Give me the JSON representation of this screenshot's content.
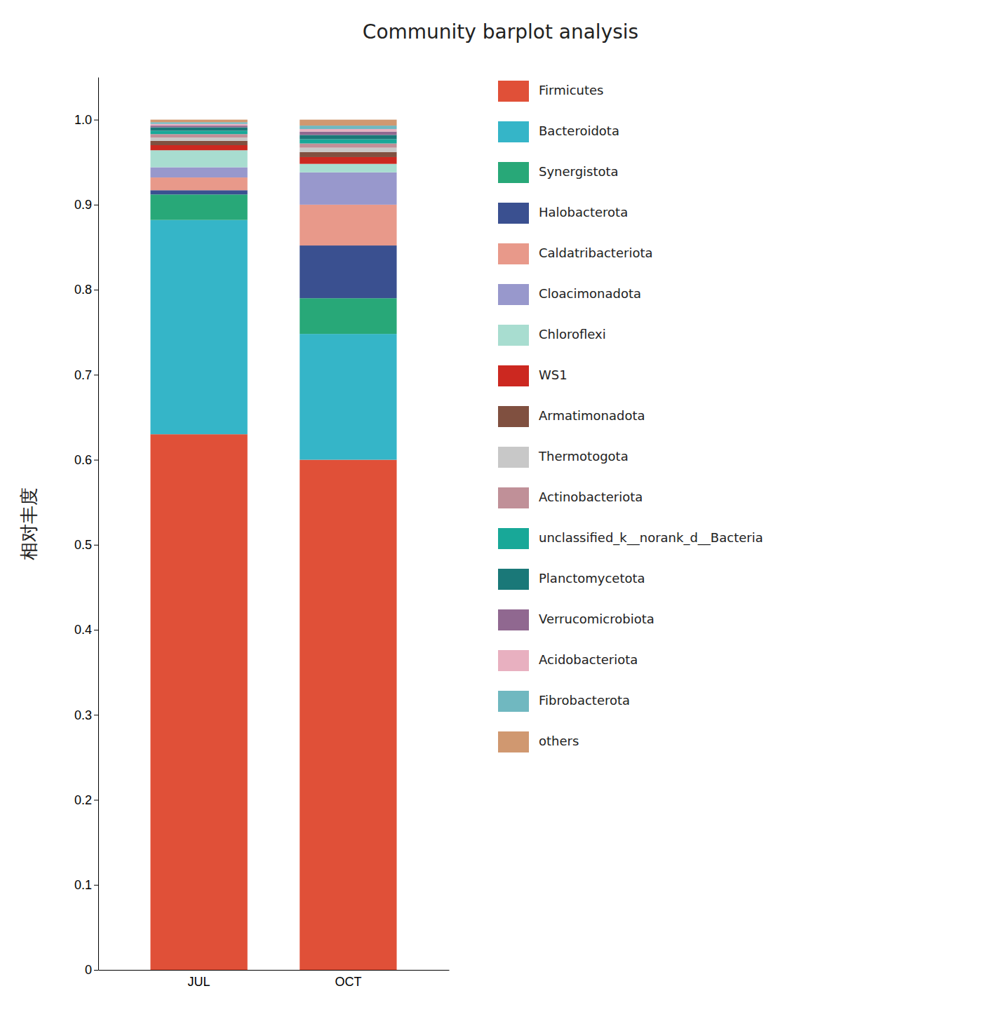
{
  "chart_data": {
    "type": "bar",
    "title": "Community barplot analysis",
    "ylabel": "相对丰度",
    "categories": [
      "JUL",
      "OCT"
    ],
    "stacked": true,
    "grid": false,
    "legend": "right",
    "ylim": [
      0,
      1.05
    ],
    "yticks": [
      0,
      0.1,
      0.2,
      0.3,
      0.4,
      0.5,
      0.6,
      0.7,
      0.8,
      0.9,
      {
        "value": 1,
        "label": "1.0"
      }
    ],
    "series": [
      {
        "name": "Firmicutes",
        "color": "#E05038",
        "values": [
          0.63,
          0.6
        ]
      },
      {
        "name": "Bacteroidota",
        "color": "#35B5C8",
        "values": [
          0.252,
          0.148
        ]
      },
      {
        "name": "Synergistota",
        "color": "#28A878",
        "values": [
          0.03,
          0.042
        ]
      },
      {
        "name": "Halobacterota",
        "color": "#3A5090",
        "values": [
          0.005,
          0.062
        ]
      },
      {
        "name": "Caldatribacteriota",
        "color": "#E8998A",
        "values": [
          0.015,
          0.048
        ]
      },
      {
        "name": "Cloacimonadota",
        "color": "#9898CC",
        "values": [
          0.012,
          0.038
        ]
      },
      {
        "name": "Chloroflexi",
        "color": "#A8DDD0",
        "values": [
          0.02,
          0.01
        ]
      },
      {
        "name": "WS1",
        "color": "#CC2820",
        "values": [
          0.006,
          0.008
        ]
      },
      {
        "name": "Armatimonadota",
        "color": "#805040",
        "values": [
          0.005,
          0.006
        ]
      },
      {
        "name": "Thermotogota",
        "color": "#C8C8C8",
        "values": [
          0.004,
          0.005
        ]
      },
      {
        "name": "Actinobacteriota",
        "color": "#C09098",
        "values": [
          0.004,
          0.005
        ]
      },
      {
        "name": "unclassified_k__norank_d__Bacteria",
        "color": "#18A898",
        "values": [
          0.004,
          0.005
        ]
      },
      {
        "name": "Planctomycetota",
        "color": "#1A7878",
        "values": [
          0.004,
          0.005
        ]
      },
      {
        "name": "Verrucomicrobiota",
        "color": "#906890",
        "values": [
          0.002,
          0.004
        ]
      },
      {
        "name": "Acidobacteriota",
        "color": "#E8B0C0",
        "values": [
          0.002,
          0.003
        ]
      },
      {
        "name": "Fibrobacterota",
        "color": "#70B8C0",
        "values": [
          0.002,
          0.004
        ]
      },
      {
        "name": "others",
        "color": "#D09870",
        "values": [
          0.003,
          0.007
        ]
      }
    ]
  }
}
